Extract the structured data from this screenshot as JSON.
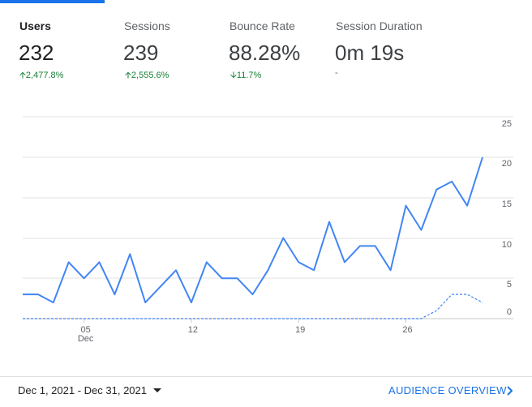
{
  "metrics": [
    {
      "label": "Users",
      "value": "232",
      "delta": "2,477.8%",
      "delta_dir": "up",
      "active": true
    },
    {
      "label": "Sessions",
      "value": "239",
      "delta": "2,555.6%",
      "delta_dir": "up",
      "active": false
    },
    {
      "label": "Bounce Rate",
      "value": "88.28%",
      "delta": "11.7%",
      "delta_dir": "down",
      "active": false
    },
    {
      "label": "Session Duration",
      "value": "0m 19s",
      "delta": "-",
      "delta_dir": "none",
      "active": false
    }
  ],
  "colors": {
    "accent": "#1a73e8",
    "line": "#4285f4",
    "positive": "#188038",
    "grid": "#e0e0e0"
  },
  "chart_data": {
    "type": "line",
    "x": [
      "Dec 1",
      "Dec 2",
      "Dec 3",
      "Dec 4",
      "Dec 5",
      "Dec 6",
      "Dec 7",
      "Dec 8",
      "Dec 9",
      "Dec 10",
      "Dec 11",
      "Dec 12",
      "Dec 13",
      "Dec 14",
      "Dec 15",
      "Dec 16",
      "Dec 17",
      "Dec 18",
      "Dec 19",
      "Dec 20",
      "Dec 21",
      "Dec 22",
      "Dec 23",
      "Dec 24",
      "Dec 25",
      "Dec 26",
      "Dec 27",
      "Dec 28",
      "Dec 29",
      "Dec 30",
      "Dec 31"
    ],
    "x_ticks": [
      {
        "index": 4,
        "label": "05",
        "sublabel": "Dec"
      },
      {
        "index": 11,
        "label": "12",
        "sublabel": ""
      },
      {
        "index": 18,
        "label": "19",
        "sublabel": ""
      },
      {
        "index": 25,
        "label": "26",
        "sublabel": ""
      }
    ],
    "y_ticks_right": [
      "25",
      "20",
      "15",
      "10",
      "5",
      "0"
    ],
    "ylim": [
      0,
      25
    ],
    "grid": true,
    "series": [
      {
        "style": "solid",
        "values": [
          3,
          3,
          2,
          7,
          5,
          7,
          3,
          8,
          2,
          4,
          6,
          2,
          7,
          5,
          5,
          3,
          6,
          10,
          7,
          6,
          12,
          7,
          9,
          9,
          6,
          14,
          11,
          16,
          17,
          14,
          20
        ]
      },
      {
        "style": "dashed",
        "values": [
          0,
          0,
          0,
          0,
          0,
          0,
          0,
          0,
          0,
          0,
          0,
          0,
          0,
          0,
          0,
          0,
          0,
          0,
          0,
          0,
          0,
          0,
          0,
          0,
          0,
          0,
          0,
          1,
          3,
          3,
          2
        ]
      }
    ]
  },
  "footer": {
    "date_range": "Dec 1, 2021 - Dec 31, 2021",
    "overview_link": "AUDIENCE OVERVIEW"
  }
}
